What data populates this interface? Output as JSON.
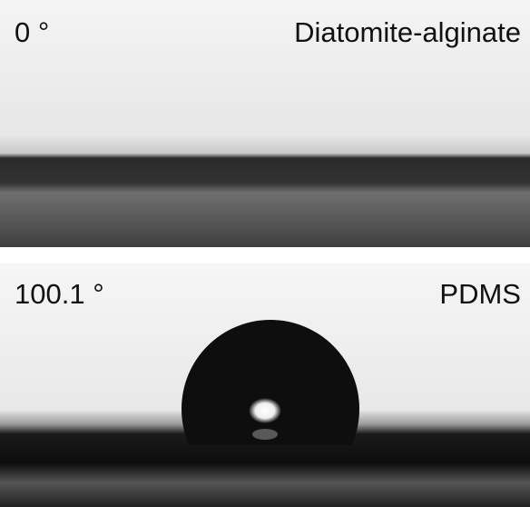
{
  "panels": [
    {
      "angle": "0 °",
      "label": "Diatomite-alginate"
    },
    {
      "angle": "100.1 °",
      "label": "PDMS"
    }
  ]
}
